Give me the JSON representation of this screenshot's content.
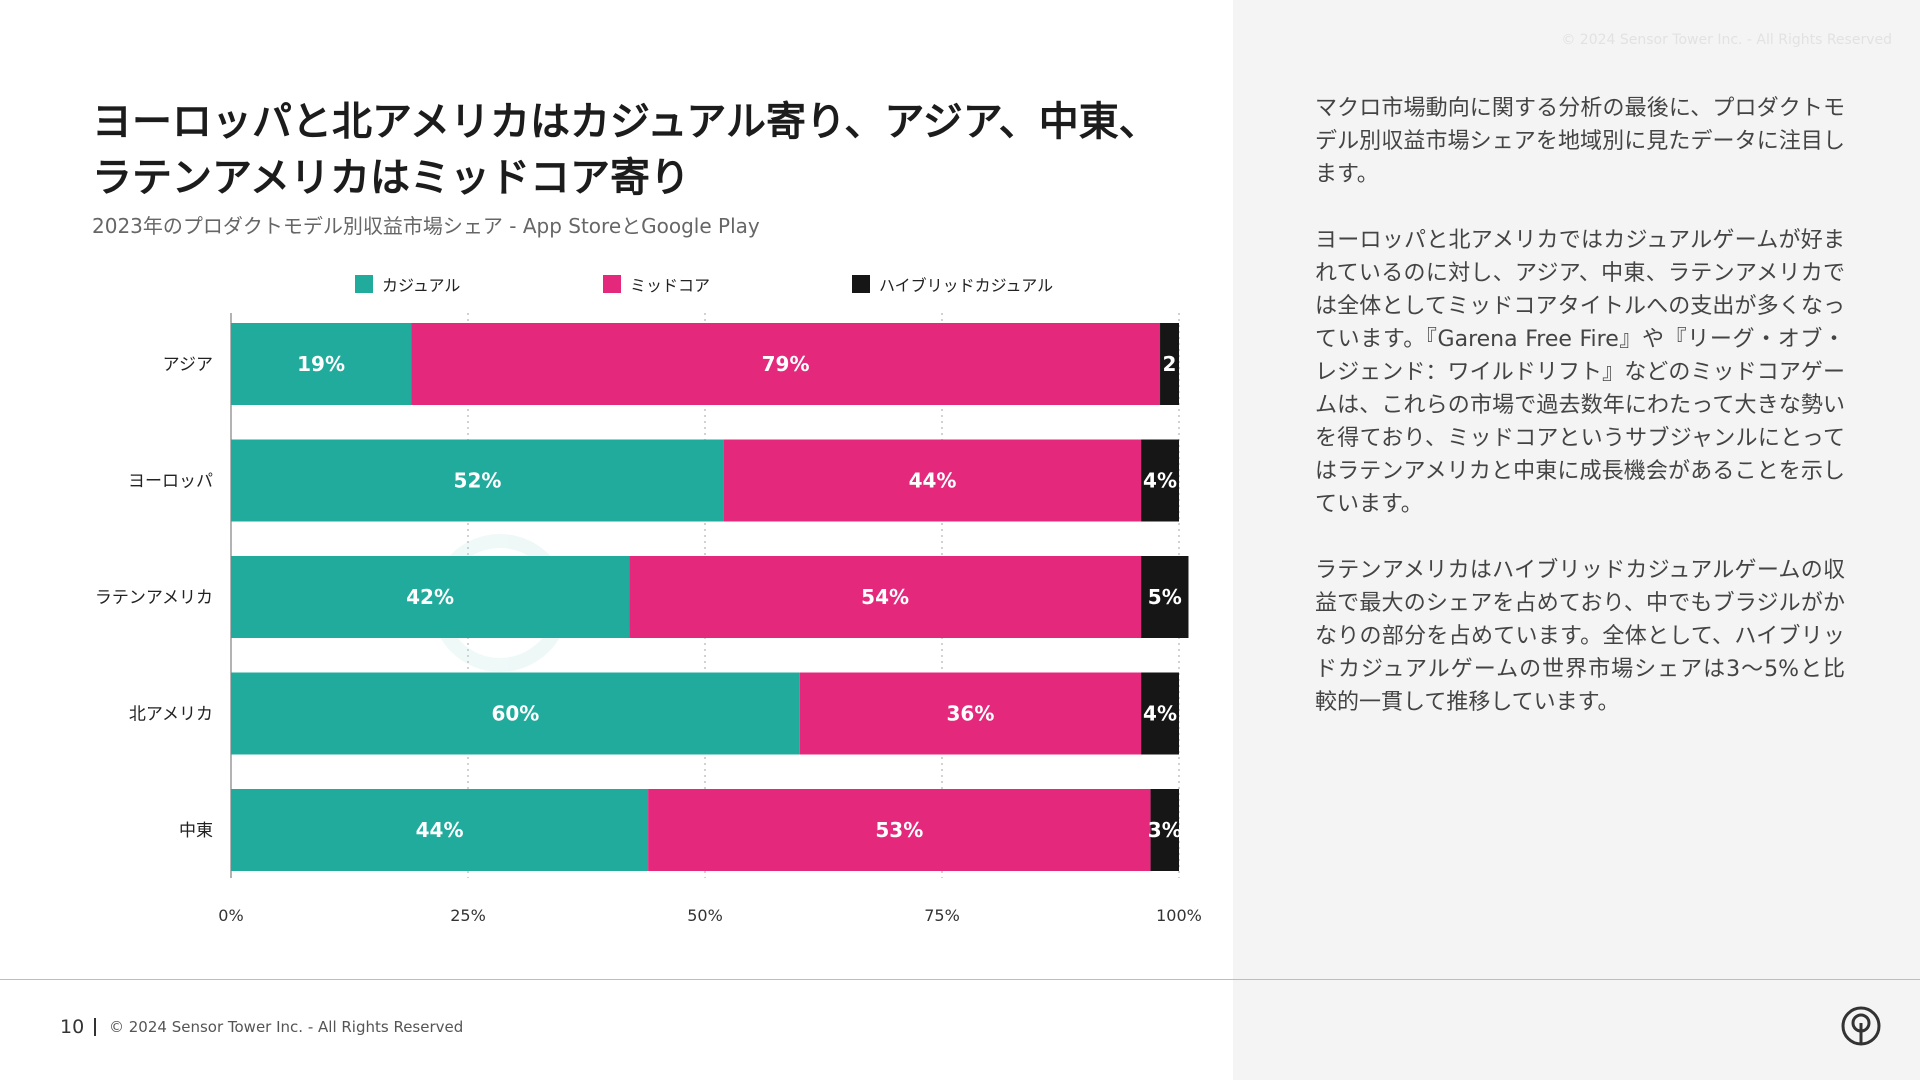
{
  "header": {
    "faint_copyright": "© 2024 Sensor Tower Inc. - All Rights Reserved",
    "title_line1": "ヨーロッパと北アメリカはカジュアル寄り、アジア、中東、",
    "title_line2": "ラテンアメリカはミッドコア寄り",
    "subtitle": "2023年のプロダクトモデル別収益市場シェア - App StoreとGoogle Play"
  },
  "watermark": {
    "text": "SensorTower"
  },
  "chart_data": {
    "type": "bar",
    "orientation": "horizontal",
    "stacked": true,
    "title": "",
    "xlabel": "",
    "ylabel": "",
    "categories": [
      "アジア",
      "ヨーロッパ",
      "ラテンアメリカ",
      "北アメリカ",
      "中東"
    ],
    "series": [
      {
        "name": "カジュアル",
        "color": "#21ab9c",
        "values": [
          19,
          52,
          42,
          60,
          44
        ],
        "labels": [
          "19%",
          "52%",
          "42%",
          "60%",
          "44%"
        ]
      },
      {
        "name": "ミッドコア",
        "color": "#e4287c",
        "values": [
          79,
          44,
          54,
          36,
          53
        ],
        "labels": [
          "79%",
          "44%",
          "54%",
          "36%",
          "53%"
        ]
      },
      {
        "name": "ハイブリッドカジュアル",
        "color": "#161616",
        "values": [
          2,
          4,
          5,
          4,
          3
        ],
        "labels": [
          "2",
          "4%",
          "5%",
          "4%",
          "3%"
        ]
      }
    ],
    "xlim": [
      0,
      100
    ],
    "x_ticks": [
      0,
      25,
      50,
      75,
      100
    ],
    "x_tick_labels": [
      "0%",
      "25%",
      "50%",
      "75%",
      "100%"
    ],
    "grid": "vertical-dotted",
    "legend_position": "top"
  },
  "body": {
    "paragraphs": [
      "マクロ市場動向に関する分析の最後に、プロダクトモデル別収益市場シェアを地域別に見たデータに注目します。",
      "ヨーロッパと北アメリカではカジュアルゲームが好まれているのに対し、アジア、中東、ラテンアメリカでは全体としてミッドコアタイトルへの支出が多くなっています。『Garena Free Fire』や『リーグ・オブ・レジェンド：ワイルドリフト』などのミッドコアゲームは、これらの市場で過去数年にわたって大きな勢いを得ており、ミッドコアというサブジャンルにとってはラテンアメリカと中東に成長機会があることを示しています。",
      "ラテンアメリカはハイブリッドカジュアルゲームの収益で最大のシェアを占めており、中でもブラジルがかなりの部分を占めています。全体として、ハイブリッドカジュアルゲームの世界市場シェアは3〜5%と比較的一貫して推移しています。"
    ]
  },
  "footer": {
    "page_number": "10",
    "copyright": "© 2024 Sensor Tower Inc. - All Rights Reserved",
    "logo_icon": "sensor-tower-logo-icon"
  }
}
